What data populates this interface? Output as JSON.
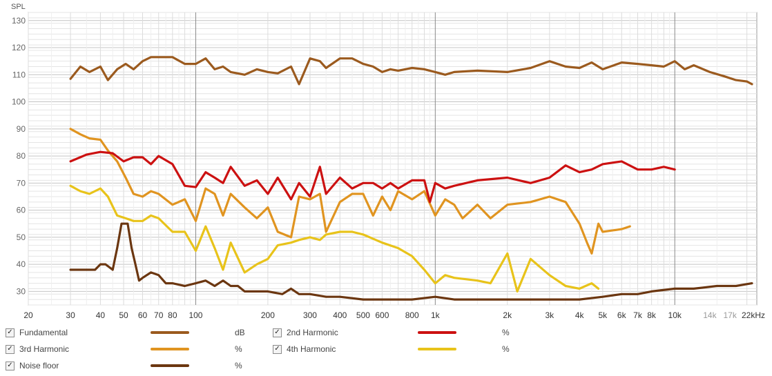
{
  "chart_data": {
    "type": "line",
    "ylabel": "SPL",
    "x_scale": "log",
    "xlim": [
      20,
      22000
    ],
    "ylim": [
      25,
      133
    ],
    "y_ticks": [
      30,
      40,
      50,
      60,
      70,
      80,
      90,
      100,
      110,
      120,
      130
    ],
    "x_ticks": [
      {
        "v": 20,
        "label": "20"
      },
      {
        "v": 30,
        "label": "30"
      },
      {
        "v": 40,
        "label": "40"
      },
      {
        "v": 50,
        "label": "50"
      },
      {
        "v": 60,
        "label": "60"
      },
      {
        "v": 70,
        "label": "70"
      },
      {
        "v": 80,
        "label": "80"
      },
      {
        "v": 100,
        "label": "100"
      },
      {
        "v": 200,
        "label": "200"
      },
      {
        "v": 300,
        "label": "300"
      },
      {
        "v": 400,
        "label": "400"
      },
      {
        "v": 500,
        "label": "500"
      },
      {
        "v": 600,
        "label": "600"
      },
      {
        "v": 800,
        "label": "800"
      },
      {
        "v": 1000,
        "label": "1k"
      },
      {
        "v": 2000,
        "label": "2k"
      },
      {
        "v": 3000,
        "label": "3k"
      },
      {
        "v": 4000,
        "label": "4k"
      },
      {
        "v": 5000,
        "label": "5k"
      },
      {
        "v": 6000,
        "label": "6k"
      },
      {
        "v": 7000,
        "label": "7k"
      },
      {
        "v": 8000,
        "label": "8k"
      },
      {
        "v": 10000,
        "label": "10k"
      },
      {
        "v": 14000,
        "label": "14k",
        "muted": true
      },
      {
        "v": 17000,
        "label": "17k",
        "muted": true
      },
      {
        "v": 22000,
        "label": "22kHz"
      }
    ],
    "grid": true,
    "legend_position": "bottom",
    "series": [
      {
        "name": "Fundamental",
        "unit": "dB",
        "color": "#9b5a1e",
        "x": [
          30,
          33,
          36,
          40,
          43,
          47,
          51,
          55,
          60,
          65,
          70,
          80,
          90,
          100,
          110,
          120,
          130,
          140,
          160,
          180,
          200,
          220,
          250,
          270,
          300,
          330,
          350,
          400,
          450,
          500,
          550,
          600,
          650,
          700,
          800,
          900,
          1000,
          1100,
          1200,
          1500,
          2000,
          2500,
          3000,
          3500,
          4000,
          4500,
          5000,
          6000,
          7000,
          8000,
          9000,
          10000,
          11000,
          12000,
          14000,
          16000,
          18000,
          20000,
          21000
        ],
        "y": [
          108.5,
          113,
          111,
          113,
          108,
          112,
          114,
          112,
          115,
          116.5,
          116.5,
          116.5,
          114,
          114,
          116,
          112,
          113,
          111,
          110,
          112,
          111,
          110.5,
          113,
          106.5,
          116,
          115,
          112.5,
          116,
          116,
          114,
          113,
          111,
          112,
          111.5,
          112.5,
          112,
          111,
          110,
          111,
          111.5,
          111,
          112.5,
          115,
          113,
          112.5,
          114.5,
          112,
          114.5,
          114,
          113.5,
          113,
          115,
          112,
          113.5,
          111,
          109.5,
          108,
          107.5,
          106.5
        ]
      },
      {
        "name": "2nd Harmonic",
        "unit": "%",
        "color": "#cc1111",
        "x": [
          30,
          35,
          40,
          45,
          50,
          55,
          60,
          65,
          70,
          80,
          90,
          100,
          110,
          120,
          130,
          140,
          160,
          180,
          200,
          220,
          250,
          270,
          300,
          330,
          350,
          400,
          450,
          500,
          550,
          600,
          650,
          700,
          800,
          900,
          950,
          1000,
          1100,
          1200,
          1500,
          2000,
          2500,
          3000,
          3500,
          4000,
          4500,
          5000,
          6000,
          7000,
          8000,
          9000,
          10000
        ],
        "y": [
          78,
          80.5,
          81.5,
          81,
          78,
          79.5,
          79.5,
          77,
          80,
          77,
          69,
          68.5,
          74,
          72,
          70,
          76,
          69,
          71,
          66,
          72,
          64,
          70,
          65,
          76,
          66,
          72,
          68,
          70,
          70,
          68,
          70,
          68,
          71,
          71,
          63,
          70,
          68,
          69,
          71,
          72,
          70,
          72,
          76.5,
          74,
          75,
          77,
          78,
          75,
          75,
          76,
          75
        ]
      },
      {
        "name": "3rd Harmonic",
        "unit": "%",
        "color": "#e09420",
        "x": [
          30,
          33,
          36,
          40,
          43,
          47,
          51,
          55,
          60,
          65,
          70,
          80,
          90,
          100,
          110,
          120,
          130,
          140,
          160,
          180,
          200,
          220,
          250,
          270,
          300,
          330,
          350,
          400,
          450,
          500,
          550,
          600,
          650,
          700,
          800,
          900,
          1000,
          1100,
          1200,
          1300,
          1500,
          1700,
          2000,
          2500,
          3000,
          3500,
          4000,
          4300,
          4500,
          4800,
          5000,
          6000,
          6500
        ],
        "y": [
          90,
          88,
          86.5,
          86,
          82,
          78,
          72,
          66,
          65,
          67,
          66,
          62,
          64,
          56,
          68,
          66,
          58,
          66,
          61,
          57,
          61,
          52,
          50,
          65,
          64,
          66,
          52,
          63,
          66,
          66,
          58,
          65,
          60,
          67,
          64,
          67,
          58,
          64,
          62,
          57,
          62,
          57,
          62,
          63,
          65,
          63,
          55,
          48,
          44,
          55,
          52,
          53,
          54
        ]
      },
      {
        "name": "4th Harmonic",
        "unit": "%",
        "color": "#e8c31a",
        "x": [
          30,
          33,
          36,
          40,
          43,
          47,
          51,
          55,
          60,
          65,
          70,
          80,
          90,
          100,
          110,
          120,
          130,
          140,
          160,
          180,
          200,
          220,
          250,
          270,
          300,
          330,
          350,
          400,
          450,
          500,
          600,
          700,
          800,
          900,
          1000,
          1100,
          1200,
          1500,
          1700,
          2000,
          2200,
          2500,
          3000,
          3500,
          4000,
          4500,
          4800
        ],
        "y": [
          69,
          67,
          66,
          68,
          65,
          58,
          57,
          56,
          56,
          58,
          57,
          52,
          52,
          45,
          54,
          46,
          38,
          48,
          37,
          40,
          42,
          47,
          48,
          49,
          50,
          49,
          51,
          52,
          52,
          51,
          48,
          46,
          43,
          38,
          33,
          36,
          35,
          34,
          33,
          44,
          30,
          42,
          36,
          32,
          31,
          33,
          31
        ]
      },
      {
        "name": "Noise floor",
        "unit": "%",
        "color": "#6b3610",
        "x": [
          30,
          35,
          38,
          40,
          42,
          45,
          47,
          49,
          52,
          54,
          56,
          58,
          60,
          65,
          70,
          75,
          80,
          90,
          100,
          110,
          120,
          130,
          140,
          150,
          160,
          180,
          200,
          230,
          250,
          270,
          300,
          350,
          400,
          500,
          600,
          700,
          800,
          1000,
          1200,
          1500,
          2000,
          2500,
          3000,
          4000,
          5000,
          6000,
          7000,
          8000,
          10000,
          12000,
          15000,
          18000,
          21000
        ],
        "y": [
          38,
          38,
          38,
          40,
          40,
          38,
          46,
          55,
          55,
          46,
          40,
          34,
          35,
          37,
          36,
          33,
          33,
          32,
          33,
          34,
          32,
          34,
          32,
          32,
          30,
          30,
          30,
          29,
          31,
          29,
          29,
          28,
          28,
          27,
          27,
          27,
          27,
          28,
          27,
          27,
          27,
          27,
          27,
          27,
          28,
          29,
          29,
          30,
          31,
          31,
          32,
          32,
          33
        ]
      }
    ]
  }
}
